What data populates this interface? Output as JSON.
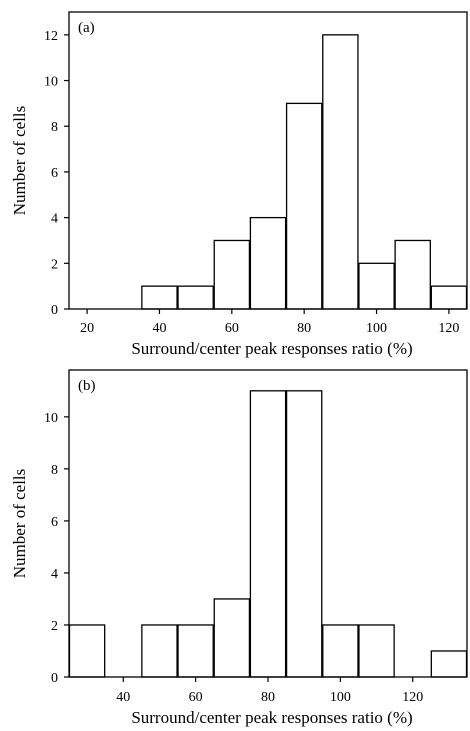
{
  "chart_data": [
    {
      "type": "bar",
      "panel_label": "(a)",
      "xlabel": "Surround/center peak responses ratio (%)",
      "ylabel": "Number of cells",
      "bin_width": 10,
      "xlim": [
        15,
        125
      ],
      "ylim": [
        0,
        13
      ],
      "xticks": [
        20,
        40,
        60,
        80,
        100,
        120
      ],
      "yticks": [
        0,
        2,
        4,
        6,
        8,
        10,
        12
      ],
      "x": [
        40,
        50,
        60,
        70,
        80,
        90,
        100,
        110,
        120
      ],
      "values": [
        1,
        1,
        3,
        4,
        9,
        12,
        2,
        3,
        1
      ],
      "grid": false
    },
    {
      "type": "bar",
      "panel_label": "(b)",
      "xlabel": "Surround/center peak responses ratio (%)",
      "ylabel": "Number of cells",
      "bin_width": 10,
      "xlim": [
        25,
        135
      ],
      "ylim": [
        0,
        11.8
      ],
      "xticks": [
        40,
        60,
        80,
        100,
        120
      ],
      "yticks": [
        0,
        2,
        4,
        6,
        8,
        10
      ],
      "x": [
        30,
        50,
        60,
        70,
        80,
        90,
        100,
        110,
        130
      ],
      "values": [
        2,
        2,
        2,
        3,
        11,
        11,
        2,
        2,
        1
      ],
      "grid": false
    }
  ]
}
